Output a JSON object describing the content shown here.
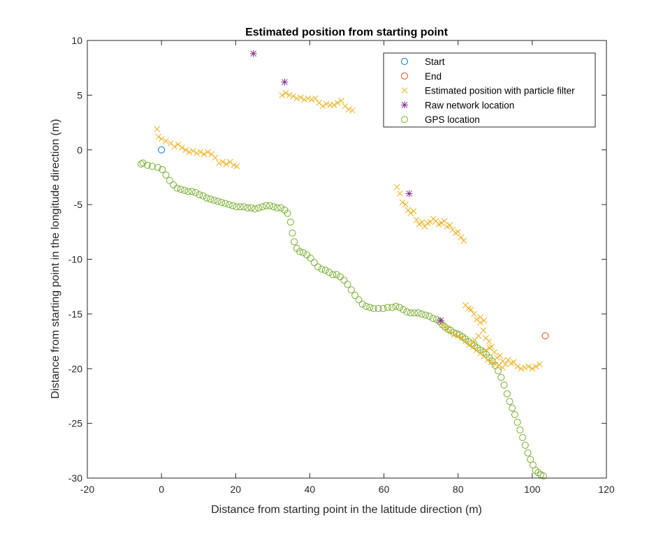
{
  "chart_data": {
    "type": "scatter",
    "title": "Estimated position from starting point",
    "xlabel": "Distance from starting point in the latitude direction (m)",
    "ylabel": "Distance from starting point in the longitude direction (m)",
    "xlim": [
      -20,
      120
    ],
    "ylim": [
      -30,
      10
    ],
    "xticks": [
      -20,
      0,
      20,
      40,
      60,
      80,
      100,
      120
    ],
    "yticks": [
      -30,
      -25,
      -20,
      -15,
      -10,
      -5,
      0,
      5,
      10
    ],
    "grid": false,
    "legend_position": "top-right",
    "series": [
      {
        "name": "Start",
        "marker": "circle",
        "color": "#0072BD",
        "points": [
          [
            0,
            0
          ]
        ]
      },
      {
        "name": "End",
        "marker": "circle",
        "color": "#D95319",
        "points": [
          [
            103.5,
            -17
          ]
        ]
      },
      {
        "name": "Estimated position with particle filter",
        "marker": "x",
        "color": "#EDB120",
        "points": [
          [
            -1.2,
            1.9
          ],
          [
            -0.8,
            1.2
          ],
          [
            0,
            1.0
          ],
          [
            1.2,
            0.8
          ],
          [
            2.5,
            0.6
          ],
          [
            3.5,
            0.3
          ],
          [
            4.5,
            0.5
          ],
          [
            5.5,
            0.2
          ],
          [
            6.5,
            0.0
          ],
          [
            7.5,
            -0.2
          ],
          [
            8.5,
            -0.1
          ],
          [
            9.5,
            -0.3
          ],
          [
            10.5,
            -0.2
          ],
          [
            11.5,
            -0.4
          ],
          [
            12.5,
            -0.2
          ],
          [
            13.5,
            -0.4
          ],
          [
            14.5,
            -0.7
          ],
          [
            15.5,
            -1.2
          ],
          [
            16.5,
            -1.1
          ],
          [
            17.5,
            -1.3
          ],
          [
            18.5,
            -1.1
          ],
          [
            19.5,
            -1.4
          ],
          [
            20.3,
            -1.5
          ],
          [
            32.5,
            5.0
          ],
          [
            33.5,
            5.2
          ],
          [
            34.5,
            5.0
          ],
          [
            35.5,
            4.9
          ],
          [
            36.5,
            4.7
          ],
          [
            37.5,
            4.8
          ],
          [
            38.5,
            4.6
          ],
          [
            39.5,
            4.7
          ],
          [
            40.5,
            4.6
          ],
          [
            41.5,
            4.7
          ],
          [
            42.5,
            4.3
          ],
          [
            43.5,
            4.0
          ],
          [
            44.5,
            4.2
          ],
          [
            45.5,
            4.1
          ],
          [
            46.5,
            4.1
          ],
          [
            47.5,
            4.3
          ],
          [
            48.5,
            4.5
          ],
          [
            49.5,
            4.0
          ],
          [
            50.5,
            3.7
          ],
          [
            51.5,
            3.6
          ],
          [
            63.5,
            -3.4
          ],
          [
            64.3,
            -4.0
          ],
          [
            65.0,
            -4.8
          ],
          [
            65.8,
            -5.0
          ],
          [
            66.5,
            -5.5
          ],
          [
            67.2,
            -5.8
          ],
          [
            68.0,
            -5.6
          ],
          [
            68.8,
            -6.4
          ],
          [
            69.5,
            -6.8
          ],
          [
            70.3,
            -6.6
          ],
          [
            71.0,
            -7.0
          ],
          [
            71.8,
            -6.7
          ],
          [
            72.5,
            -6.6
          ],
          [
            73.3,
            -6.3
          ],
          [
            74.0,
            -6.5
          ],
          [
            74.8,
            -6.8
          ],
          [
            75.5,
            -6.7
          ],
          [
            76.3,
            -6.5
          ],
          [
            77.0,
            -7.0
          ],
          [
            77.8,
            -6.9
          ],
          [
            78.5,
            -7.3
          ],
          [
            79.3,
            -7.6
          ],
          [
            80.0,
            -7.5
          ],
          [
            80.8,
            -8.0
          ],
          [
            81.5,
            -8.3
          ],
          [
            82.0,
            -14.2
          ],
          [
            82.8,
            -14.5
          ],
          [
            83.5,
            -14.6
          ],
          [
            84.3,
            -15.0
          ],
          [
            85.0,
            -15.5
          ],
          [
            86.0,
            -15.8
          ],
          [
            86.8,
            -16.5
          ],
          [
            87.5,
            -17.2
          ],
          [
            88.3,
            -17.5
          ],
          [
            89.0,
            -18.0
          ],
          [
            89.8,
            -18.5
          ],
          [
            90.5,
            -19.0
          ],
          [
            91.3,
            -18.8
          ],
          [
            92.0,
            -19.3
          ],
          [
            92.8,
            -19.6
          ],
          [
            93.5,
            -19.2
          ],
          [
            94.3,
            -19.5
          ],
          [
            95.0,
            -19.4
          ],
          [
            96.0,
            -19.8
          ],
          [
            97.0,
            -20.0
          ],
          [
            98.0,
            -19.9
          ],
          [
            99.0,
            -19.8
          ],
          [
            100.0,
            -20.0
          ],
          [
            101.0,
            -19.8
          ],
          [
            102.0,
            -19.6
          ],
          [
            75.8,
            -16.0
          ],
          [
            77.0,
            -16.3
          ],
          [
            78.0,
            -16.6
          ],
          [
            79.0,
            -16.9
          ],
          [
            80.0,
            -17.0
          ],
          [
            81.0,
            -17.2
          ],
          [
            82.0,
            -17.5
          ],
          [
            83.0,
            -17.8
          ],
          [
            84.0,
            -18.0
          ],
          [
            85.0,
            -18.3
          ],
          [
            86.0,
            -18.6
          ],
          [
            87.0,
            -18.9
          ],
          [
            88.0,
            -19.2
          ],
          [
            89.0,
            -19.4
          ],
          [
            90.0,
            -19.6
          ],
          [
            91.0,
            -19.7
          ],
          [
            92.0,
            -19.9
          ],
          [
            86.0,
            -15.3
          ],
          [
            87.0,
            -15.6
          ],
          [
            85.5,
            -17.0
          ],
          [
            84.5,
            -17.4
          ],
          [
            88.5,
            -18.1
          ],
          [
            87.5,
            -18.3
          ]
        ]
      },
      {
        "name": "Raw network location",
        "marker": "asterisk",
        "color": "#7E2F8E",
        "points": [
          [
            24.8,
            8.8
          ],
          [
            33.2,
            6.2
          ],
          [
            66.8,
            -4.0
          ],
          [
            75.3,
            -15.6
          ]
        ]
      },
      {
        "name": "GPS location",
        "marker": "circle",
        "color": "#77AC30",
        "points": [
          [
            -5.5,
            -1.3
          ],
          [
            -5.0,
            -1.2
          ],
          [
            -3.8,
            -1.4
          ],
          [
            -2.5,
            -1.5
          ],
          [
            -1.0,
            -1.6
          ],
          [
            0.2,
            -1.8
          ],
          [
            1.2,
            -2.3
          ],
          [
            2.2,
            -2.8
          ],
          [
            3.2,
            -3.2
          ],
          [
            4.2,
            -3.5
          ],
          [
            5.2,
            -3.6
          ],
          [
            6.2,
            -3.7
          ],
          [
            7.2,
            -3.8
          ],
          [
            8.2,
            -3.8
          ],
          [
            9.2,
            -3.9
          ],
          [
            10.2,
            -4.1
          ],
          [
            11.2,
            -4.2
          ],
          [
            12.2,
            -4.4
          ],
          [
            13.2,
            -4.5
          ],
          [
            14.2,
            -4.6
          ],
          [
            15.2,
            -4.7
          ],
          [
            16.2,
            -4.8
          ],
          [
            17.2,
            -4.9
          ],
          [
            18.2,
            -5.0
          ],
          [
            19.2,
            -5.1
          ],
          [
            20.2,
            -5.2
          ],
          [
            21.2,
            -5.2
          ],
          [
            22.2,
            -5.2
          ],
          [
            23.2,
            -5.3
          ],
          [
            24.2,
            -5.3
          ],
          [
            25.2,
            -5.4
          ],
          [
            26.2,
            -5.3
          ],
          [
            27.2,
            -5.2
          ],
          [
            28.2,
            -5.1
          ],
          [
            29.2,
            -5.1
          ],
          [
            30.2,
            -5.2
          ],
          [
            31.2,
            -5.3
          ],
          [
            32.2,
            -5.3
          ],
          [
            33.2,
            -5.5
          ],
          [
            34.0,
            -5.8
          ],
          [
            34.8,
            -6.6
          ],
          [
            35.3,
            -7.6
          ],
          [
            35.8,
            -8.4
          ],
          [
            36.5,
            -9.0
          ],
          [
            37.3,
            -9.3
          ],
          [
            38.2,
            -9.4
          ],
          [
            39.2,
            -9.6
          ],
          [
            40.2,
            -9.9
          ],
          [
            41.2,
            -10.3
          ],
          [
            42.2,
            -10.7
          ],
          [
            43.2,
            -10.9
          ],
          [
            44.2,
            -11.0
          ],
          [
            45.2,
            -11.2
          ],
          [
            46.2,
            -11.4
          ],
          [
            47.2,
            -11.4
          ],
          [
            48.2,
            -11.6
          ],
          [
            49.2,
            -11.9
          ],
          [
            50.2,
            -12.3
          ],
          [
            51.2,
            -12.8
          ],
          [
            52.2,
            -13.3
          ],
          [
            53.2,
            -13.7
          ],
          [
            54.2,
            -14.1
          ],
          [
            55.2,
            -14.3
          ],
          [
            56.2,
            -14.4
          ],
          [
            57.2,
            -14.5
          ],
          [
            58.5,
            -14.5
          ],
          [
            59.8,
            -14.5
          ],
          [
            61.0,
            -14.4
          ],
          [
            62.2,
            -14.4
          ],
          [
            63.2,
            -14.3
          ],
          [
            64.2,
            -14.4
          ],
          [
            65.2,
            -14.6
          ],
          [
            66.2,
            -14.8
          ],
          [
            67.2,
            -14.9
          ],
          [
            68.2,
            -14.9
          ],
          [
            69.2,
            -14.9
          ],
          [
            70.2,
            -15.0
          ],
          [
            71.2,
            -15.1
          ],
          [
            72.2,
            -15.2
          ],
          [
            73.2,
            -15.4
          ],
          [
            74.2,
            -15.5
          ],
          [
            75.0,
            -15.7
          ],
          [
            75.8,
            -16.0
          ],
          [
            76.5,
            -16.2
          ],
          [
            77.3,
            -16.4
          ],
          [
            78.0,
            -16.5
          ],
          [
            78.8,
            -16.7
          ],
          [
            79.6,
            -16.8
          ],
          [
            80.4,
            -16.9
          ],
          [
            81.2,
            -17.1
          ],
          [
            82.0,
            -17.3
          ],
          [
            82.8,
            -17.5
          ],
          [
            83.6,
            -17.7
          ],
          [
            84.4,
            -17.9
          ],
          [
            85.2,
            -18.1
          ],
          [
            86.0,
            -18.3
          ],
          [
            86.8,
            -18.5
          ],
          [
            87.6,
            -18.7
          ],
          [
            88.4,
            -19.0
          ],
          [
            89.2,
            -19.3
          ],
          [
            90.0,
            -19.7
          ],
          [
            90.8,
            -20.2
          ],
          [
            91.6,
            -20.8
          ],
          [
            92.4,
            -21.5
          ],
          [
            93.2,
            -22.3
          ],
          [
            93.9,
            -23.0
          ],
          [
            94.6,
            -23.6
          ],
          [
            95.3,
            -24.2
          ],
          [
            96.0,
            -24.9
          ],
          [
            96.7,
            -25.6
          ],
          [
            97.4,
            -26.3
          ],
          [
            98.1,
            -27.0
          ],
          [
            98.8,
            -27.7
          ],
          [
            99.5,
            -28.3
          ],
          [
            100.2,
            -28.8
          ],
          [
            100.9,
            -29.3
          ],
          [
            101.6,
            -29.5
          ],
          [
            102.3,
            -29.7
          ],
          [
            103.0,
            -29.8
          ]
        ]
      }
    ]
  }
}
